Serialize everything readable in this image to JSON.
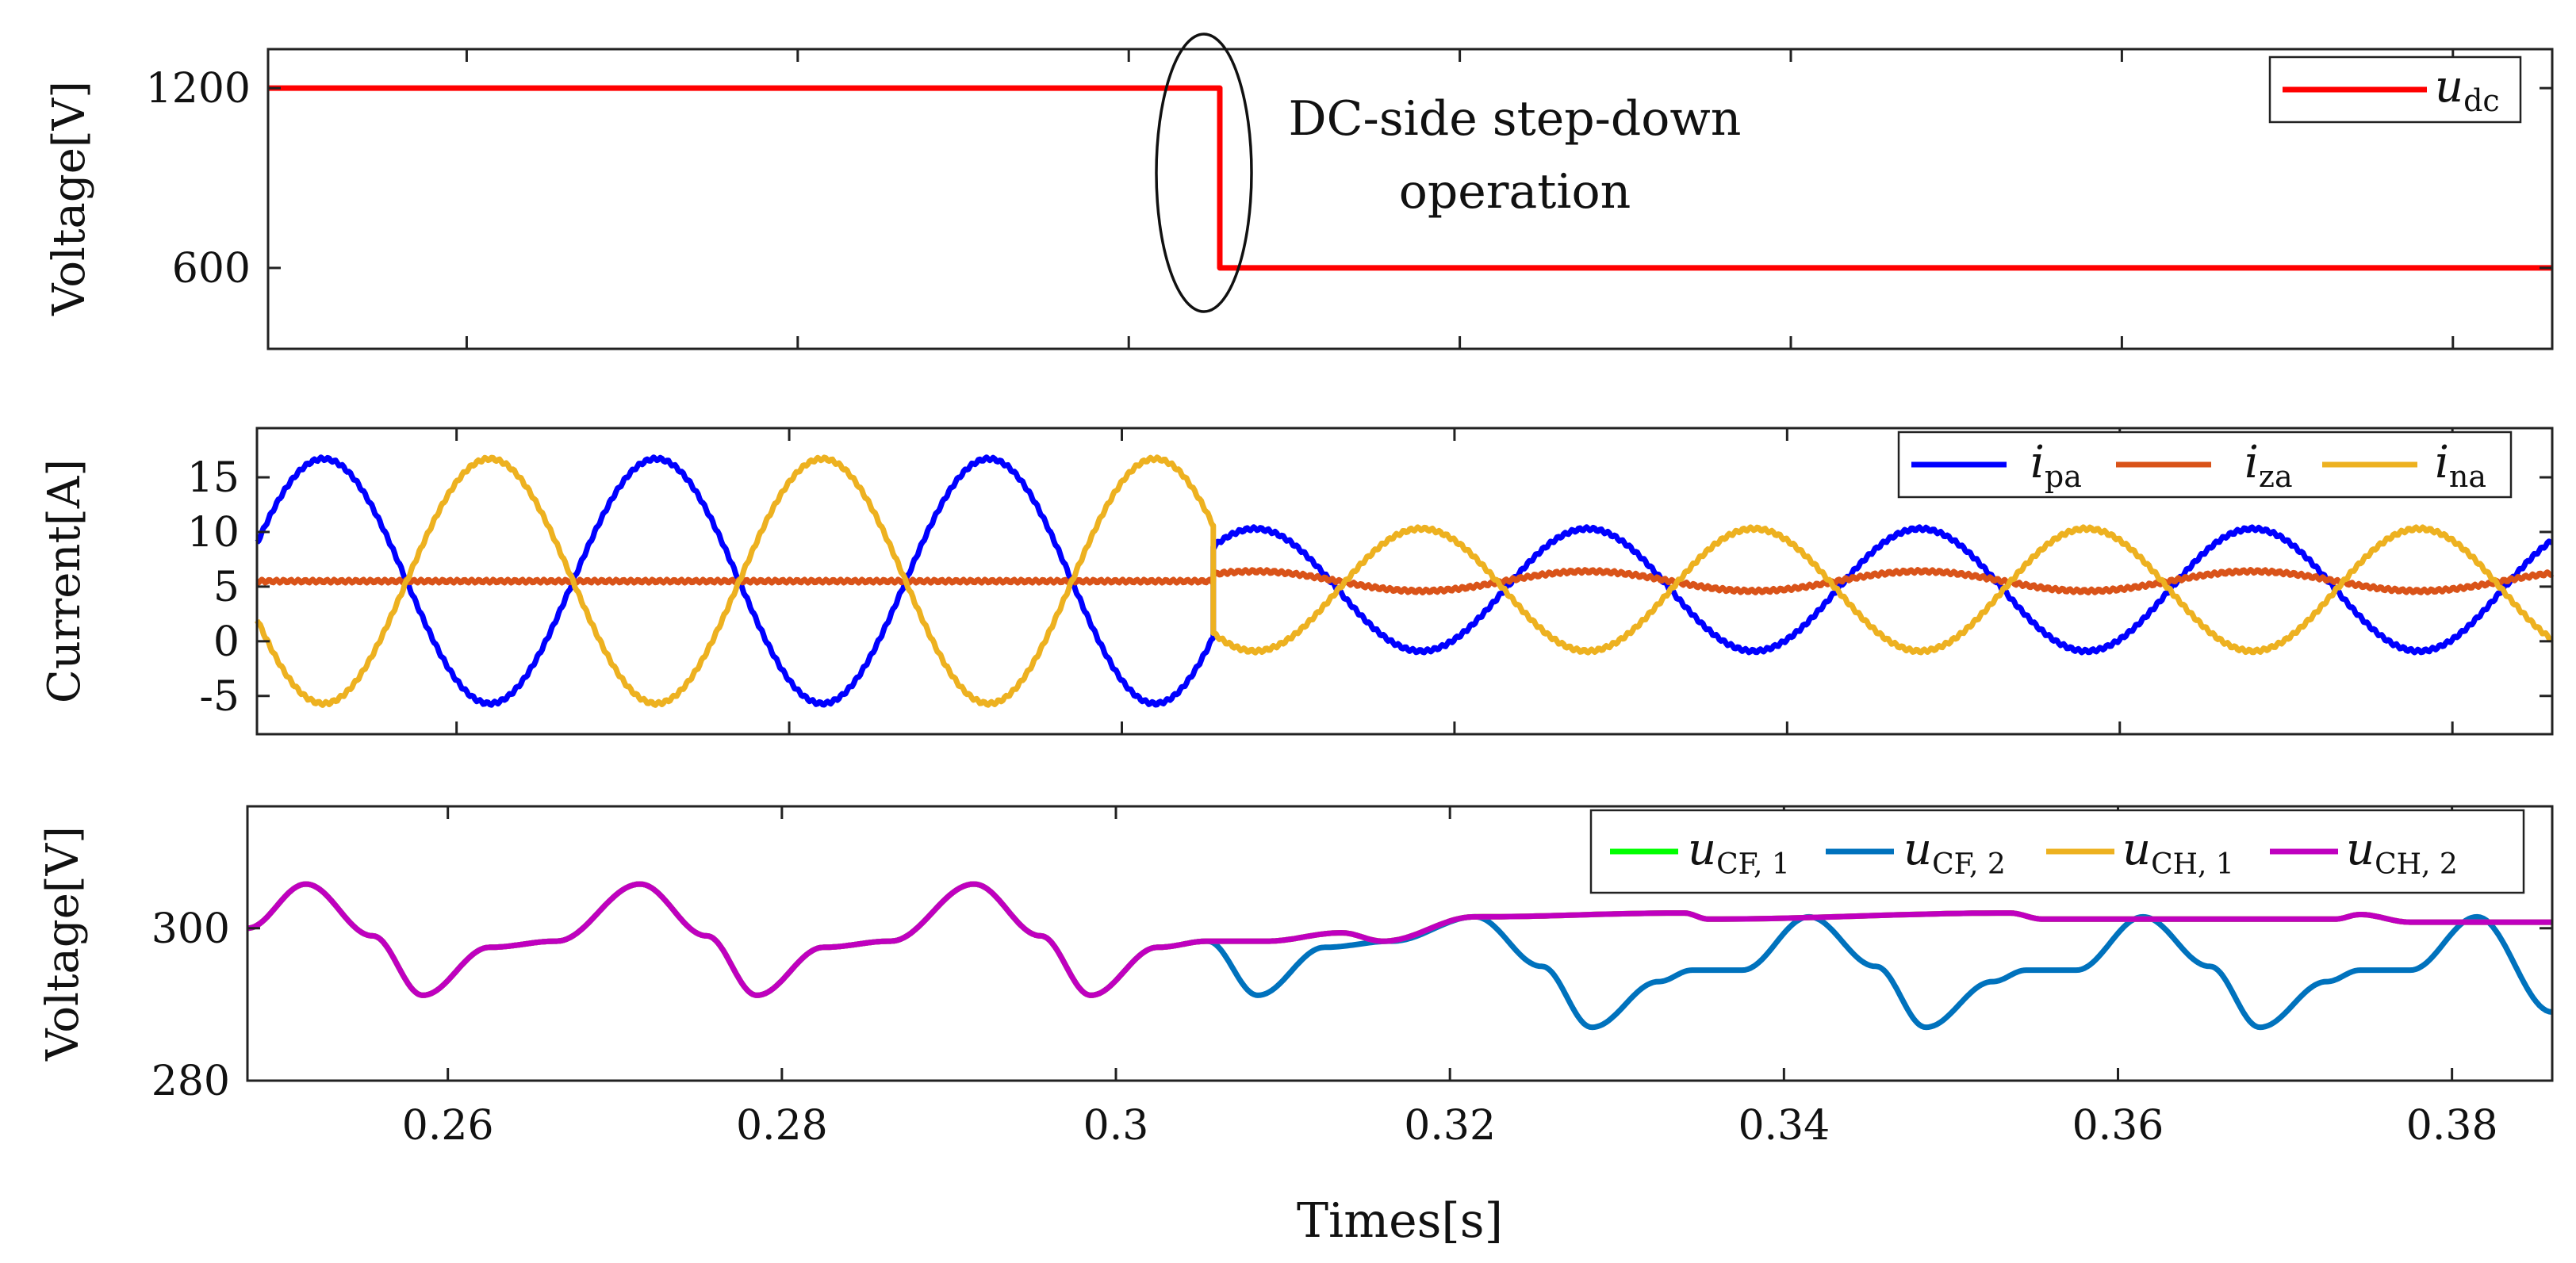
{
  "chart_data": [
    {
      "type": "line",
      "ylabel": "Voltage[V]",
      "xlim": [
        0.248,
        0.386
      ],
      "ylim": [
        330,
        1330
      ],
      "yticks": [
        600,
        1200
      ],
      "xticks": [],
      "legend": "top-right",
      "annotation": {
        "lines": [
          "DC-side step-down",
          "operation"
        ],
        "target_x": 0.3054
      },
      "series": [
        {
          "name": "u",
          "sub": "dc",
          "color": "#ff0000",
          "x": [
            0.248,
            0.3055,
            0.3055,
            0.386
          ],
          "y": [
            1200,
            1200,
            600,
            600
          ]
        }
      ]
    },
    {
      "type": "line",
      "ylabel": "Current[A]",
      "xlim": [
        0.248,
        0.386
      ],
      "ylim": [
        -8.5,
        19.5
      ],
      "yticks": [
        -5,
        0,
        5,
        10,
        15
      ],
      "yticklabels": [
        "-5",
        "0",
        "5",
        "10",
        "15"
      ],
      "xticks": [],
      "legend": "top-right",
      "series": [
        {
          "name": "i",
          "sub": "pa",
          "color": "#0000ff",
          "pre": {
            "offset": 5.5,
            "amp": 11.2,
            "phase": 0.247
          },
          "post": {
            "offset": 4.7,
            "amp": 5.6,
            "phase": 0.243
          }
        },
        {
          "name": "i",
          "sub": "za",
          "color": "#d95319",
          "pre": {
            "offset": 5.5,
            "amp": 0.0
          },
          "post": {
            "offset": 5.5,
            "amp": 0.9,
            "phase": 0.243
          }
        },
        {
          "name": "i",
          "sub": "na",
          "color": "#edb120",
          "pre": {
            "offset": 5.5,
            "amp": -11.2,
            "phase": 0.247
          },
          "post": {
            "offset": 4.7,
            "amp": -5.6,
            "phase": 0.243
          }
        }
      ],
      "step_time": 0.3055
    },
    {
      "type": "line",
      "ylabel": "Voltage[V]",
      "xlabel": "Times[s]",
      "xlim": [
        0.248,
        0.386
      ],
      "ylim": [
        280,
        316
      ],
      "yticks": [
        280,
        300
      ],
      "xticks": [
        0.26,
        0.28,
        0.3,
        0.32,
        0.34,
        0.36,
        0.38
      ],
      "xticklabels": [
        "0.26",
        "0.28",
        "0.3",
        "0.32",
        "0.34",
        "0.36",
        "0.38"
      ],
      "legend": "top-right",
      "series": [
        {
          "name": "u",
          "sub": "CF, 1",
          "color": "#00ff00",
          "points": [
            [
              0.248,
              300
            ],
            [
              0.2515,
              305.8
            ],
            [
              0.2555,
              299
            ],
            [
              0.2585,
              291.2
            ],
            [
              0.2625,
              297.5
            ],
            [
              0.2665,
              298.3
            ],
            [
              0.2715,
              305.8
            ],
            [
              0.2755,
              299
            ],
            [
              0.2785,
              291.2
            ],
            [
              0.2825,
              297.5
            ],
            [
              0.2865,
              298.3
            ],
            [
              0.2915,
              305.8
            ],
            [
              0.2955,
              299
            ],
            [
              0.2985,
              291.2
            ],
            [
              0.3025,
              297.5
            ],
            [
              0.3055,
              298.3
            ],
            [
              0.309,
              298.3
            ],
            [
              0.3135,
              299.4
            ],
            [
              0.316,
              298.3
            ],
            [
              0.3215,
              301.5
            ],
            [
              0.334,
              302.0
            ],
            [
              0.3355,
              301.2
            ],
            [
              0.3535,
              302
            ],
            [
              0.3555,
              301.2
            ],
            [
              0.373,
              301.2
            ],
            [
              0.3745,
              301.8
            ],
            [
              0.3775,
              300.8
            ],
            [
              0.386,
              300.8
            ]
          ]
        },
        {
          "name": "u",
          "sub": "CF, 2",
          "color": "#0072bd",
          "points": [
            [
              0.248,
              300
            ],
            [
              0.2515,
              305.8
            ],
            [
              0.2555,
              299
            ],
            [
              0.2585,
              291.2
            ],
            [
              0.2625,
              297.5
            ],
            [
              0.2665,
              298.3
            ],
            [
              0.2715,
              305.8
            ],
            [
              0.2755,
              299
            ],
            [
              0.2785,
              291.2
            ],
            [
              0.2825,
              297.5
            ],
            [
              0.2865,
              298.3
            ],
            [
              0.2915,
              305.8
            ],
            [
              0.2955,
              299
            ],
            [
              0.2985,
              291.2
            ],
            [
              0.3025,
              297.5
            ],
            [
              0.3055,
              298.3
            ],
            [
              0.3085,
              291.2
            ],
            [
              0.3125,
              297.5
            ],
            [
              0.3165,
              298.3
            ],
            [
              0.3215,
              301.5
            ],
            [
              0.3255,
              295
            ],
            [
              0.3285,
              287
            ],
            [
              0.3325,
              293
            ],
            [
              0.3345,
              294.5
            ],
            [
              0.3375,
              294.5
            ],
            [
              0.3415,
              301.5
            ],
            [
              0.3455,
              295
            ],
            [
              0.3485,
              287
            ],
            [
              0.3525,
              293
            ],
            [
              0.3545,
              294.5
            ],
            [
              0.3575,
              294.5
            ],
            [
              0.3615,
              301.5
            ],
            [
              0.3655,
              295
            ],
            [
              0.3685,
              287
            ],
            [
              0.3725,
              293
            ],
            [
              0.3745,
              294.5
            ],
            [
              0.3775,
              294.5
            ],
            [
              0.3815,
              301.5
            ],
            [
              0.386,
              289
            ]
          ]
        },
        {
          "name": "u",
          "sub": "CH, 1",
          "color": "#edb120",
          "points": [
            [
              0.248,
              300
            ],
            [
              0.2515,
              305.8
            ],
            [
              0.2555,
              299
            ],
            [
              0.2585,
              291.2
            ],
            [
              0.2625,
              297.5
            ],
            [
              0.2665,
              298.3
            ],
            [
              0.2715,
              305.8
            ],
            [
              0.2755,
              299
            ],
            [
              0.2785,
              291.2
            ],
            [
              0.2825,
              297.5
            ],
            [
              0.2865,
              298.3
            ],
            [
              0.2915,
              305.8
            ],
            [
              0.2955,
              299
            ],
            [
              0.2985,
              291.2
            ],
            [
              0.3025,
              297.5
            ],
            [
              0.3055,
              298.3
            ],
            [
              0.309,
              298.3
            ],
            [
              0.3135,
              299.4
            ],
            [
              0.316,
              298.3
            ],
            [
              0.3215,
              301.5
            ],
            [
              0.334,
              302.0
            ],
            [
              0.3355,
              301.2
            ],
            [
              0.3535,
              302
            ],
            [
              0.3555,
              301.2
            ],
            [
              0.373,
              301.2
            ],
            [
              0.3745,
              301.8
            ],
            [
              0.3775,
              300.8
            ],
            [
              0.386,
              300.8
            ]
          ]
        },
        {
          "name": "u",
          "sub": "CH, 2",
          "color": "#bf00bf",
          "points": [
            [
              0.248,
              300
            ],
            [
              0.2515,
              305.8
            ],
            [
              0.2555,
              299
            ],
            [
              0.2585,
              291.2
            ],
            [
              0.2625,
              297.5
            ],
            [
              0.2665,
              298.3
            ],
            [
              0.2715,
              305.8
            ],
            [
              0.2755,
              299
            ],
            [
              0.2785,
              291.2
            ],
            [
              0.2825,
              297.5
            ],
            [
              0.2865,
              298.3
            ],
            [
              0.2915,
              305.8
            ],
            [
              0.2955,
              299
            ],
            [
              0.2985,
              291.2
            ],
            [
              0.3025,
              297.5
            ],
            [
              0.3055,
              298.3
            ],
            [
              0.309,
              298.3
            ],
            [
              0.3135,
              299.4
            ],
            [
              0.316,
              298.3
            ],
            [
              0.3215,
              301.5
            ],
            [
              0.334,
              302.0
            ],
            [
              0.3355,
              301.2
            ],
            [
              0.3535,
              302
            ],
            [
              0.3555,
              301.2
            ],
            [
              0.373,
              301.2
            ],
            [
              0.3745,
              301.8
            ],
            [
              0.3775,
              300.8
            ],
            [
              0.386,
              300.8
            ]
          ]
        }
      ]
    }
  ]
}
